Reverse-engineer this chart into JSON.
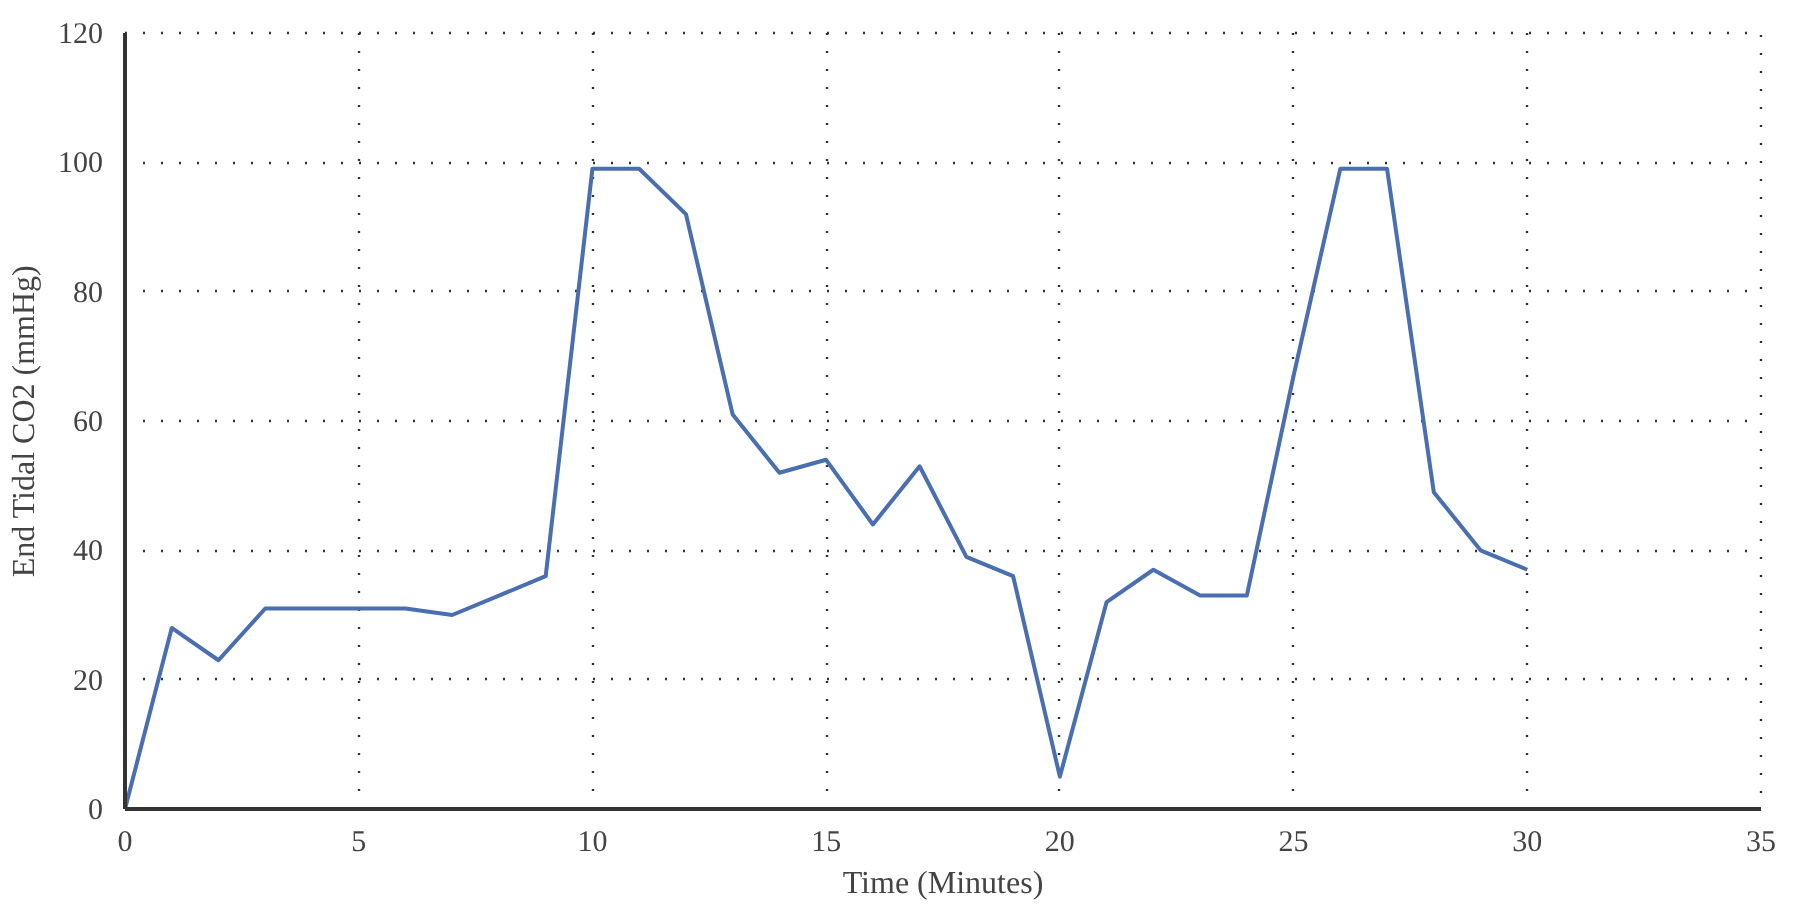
{
  "chart_data": {
    "type": "line",
    "xlabel": "Time (Minutes)",
    "ylabel": "End Tidal CO2 (mmHg)",
    "x": [
      0,
      1,
      2,
      3,
      4,
      5,
      6,
      7,
      8,
      9,
      10,
      11,
      12,
      13,
      14,
      15,
      16,
      17,
      18,
      19,
      20,
      21,
      22,
      23,
      24,
      25,
      26,
      27,
      28,
      29,
      30
    ],
    "series": [
      {
        "color": "#4a6fb0",
        "values": [
          0,
          28,
          23,
          31,
          31,
          31,
          31,
          30,
          33,
          36,
          99,
          99,
          92,
          61,
          52,
          54,
          44,
          53,
          39,
          36,
          5,
          32,
          37,
          33,
          33,
          67,
          99,
          99,
          49,
          40,
          37
        ]
      }
    ],
    "xlim": [
      0,
      35
    ],
    "xticks": [
      0,
      5,
      10,
      15,
      20,
      25,
      30,
      35
    ],
    "ylim": [
      0,
      120
    ],
    "yticks": [
      0,
      20,
      40,
      60,
      80,
      100,
      120
    ],
    "grid": true,
    "marker": "none",
    "line_style": "solid"
  }
}
